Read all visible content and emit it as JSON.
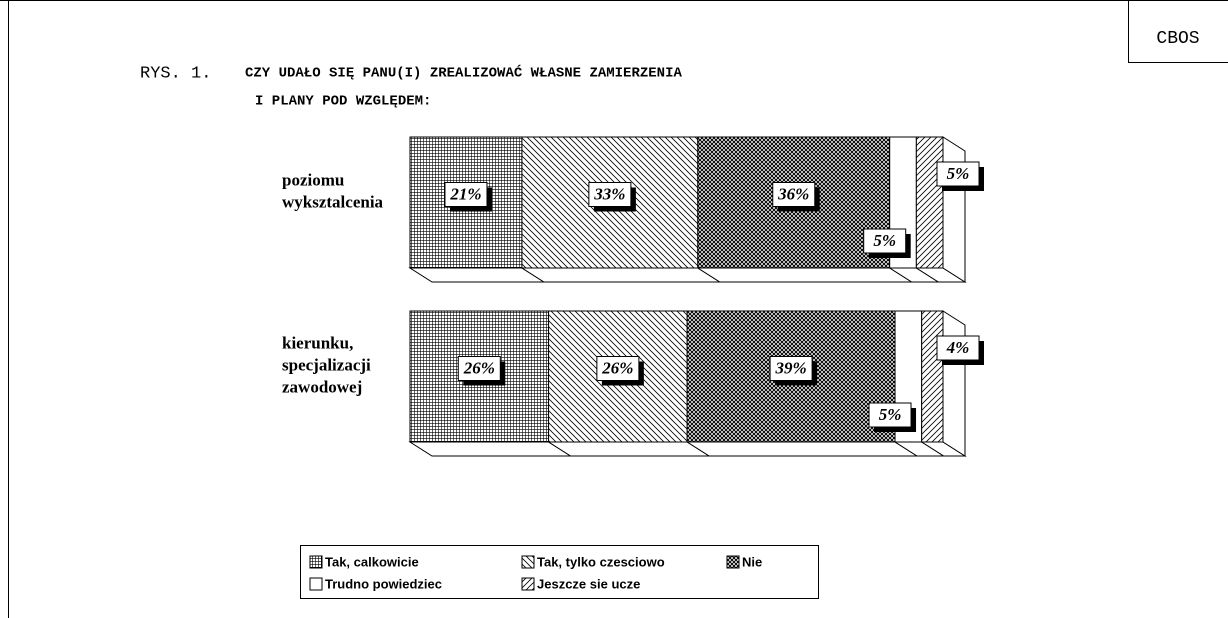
{
  "brand": "CBOS",
  "chart_data": {
    "type": "stacked-bar-3d",
    "title_prefix": "RYS. 1.",
    "title": [
      "CZY UDAŁO SIĘ PANU(I) ZREALIZOWAĆ WŁASNE ZAMIERZENIA",
      "I PLANY POD WZGLĘDEM:"
    ],
    "categories": [
      [
        "poziomu",
        "wyksztalcenia"
      ],
      [
        "kierunku,",
        "specjalizacji",
        "zawodowej"
      ]
    ],
    "series": [
      {
        "name": "Tak, calkowicie",
        "color": "#000000",
        "pattern": "grid",
        "values": [
          21,
          26
        ],
        "value_labels": [
          "21%",
          "26%"
        ]
      },
      {
        "name": "Tak, tylko czesciowo",
        "color": "#000000",
        "pattern": "backslash",
        "values": [
          33,
          26
        ],
        "value_labels": [
          "33%",
          "26%"
        ]
      },
      {
        "name": "Nie",
        "color": "#000000",
        "pattern": "cross",
        "values": [
          36,
          39
        ],
        "value_labels": [
          "36%",
          "39%"
        ]
      },
      {
        "name": "Trudno powiedziec",
        "color": "#000000",
        "pattern": "none",
        "values": [
          5,
          5
        ],
        "value_labels": [
          "5%",
          "5%"
        ]
      },
      {
        "name": "Jeszcze sie ucze",
        "color": "#000000",
        "pattern": "slash",
        "values": [
          5,
          4
        ],
        "value_labels": [
          "5%",
          "4%"
        ]
      }
    ]
  }
}
